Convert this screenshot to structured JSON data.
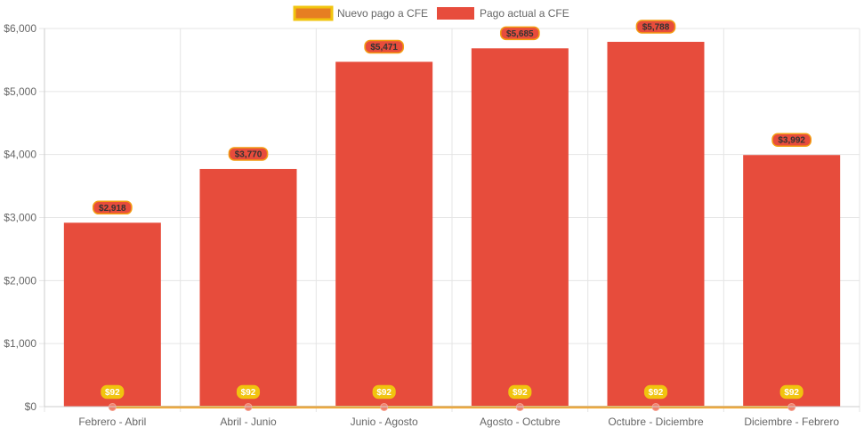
{
  "chart_data": {
    "type": "bar",
    "categories": [
      "Febrero - Abril",
      "Abril - Junio",
      "Junio - Agosto",
      "Agosto - Octubre",
      "Octubre - Diciembre",
      "Diciembre - Febrero"
    ],
    "series": [
      {
        "name": "Nuevo pago a CFE",
        "type": "line",
        "values": [
          92,
          92,
          92,
          92,
          92,
          92
        ],
        "labels": [
          "$92",
          "$92",
          "$92",
          "$92",
          "$92",
          "$92"
        ],
        "color": "#f39c12",
        "border_color": "#e67e22",
        "label_bg": "#f1c40f"
      },
      {
        "name": "Pago actual a CFE",
        "type": "bar",
        "values": [
          2918,
          3770,
          5471,
          5685,
          5788,
          3992
        ],
        "labels": [
          "$2,918",
          "$3,770",
          "$5,471",
          "$5,685",
          "$5,788",
          "$3,992"
        ],
        "color": "#e74c3c",
        "label_bg": "#e74c3c",
        "label_border": "#f39c12"
      }
    ],
    "yticks": [
      "$0",
      "$1,000",
      "$2,000",
      "$3,000",
      "$4,000",
      "$5,000",
      "$6,000"
    ],
    "ylim": [
      0,
      6000
    ],
    "grid": true,
    "legend_position": "top-center"
  }
}
